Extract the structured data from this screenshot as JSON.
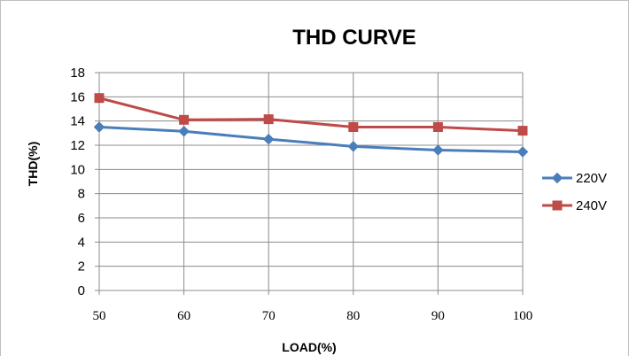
{
  "chart_data": {
    "type": "line",
    "title": "THD CURVE",
    "xlabel": "LOAD(%)",
    "ylabel": "THD(%)",
    "x": [
      50,
      60,
      70,
      80,
      90,
      100
    ],
    "ylim": [
      0,
      18
    ],
    "yticks": [
      0,
      2,
      4,
      6,
      8,
      10,
      12,
      14,
      16,
      18
    ],
    "grid": true,
    "legend_position": "right",
    "series": [
      {
        "name": "220V",
        "marker": "diamond",
        "color": "#4a7ebb",
        "values": [
          13.5,
          13.15,
          12.5,
          11.9,
          11.6,
          11.45
        ]
      },
      {
        "name": "240V",
        "marker": "square",
        "color": "#be4b48",
        "values": [
          15.9,
          14.1,
          14.15,
          13.5,
          13.5,
          13.2
        ]
      }
    ]
  }
}
